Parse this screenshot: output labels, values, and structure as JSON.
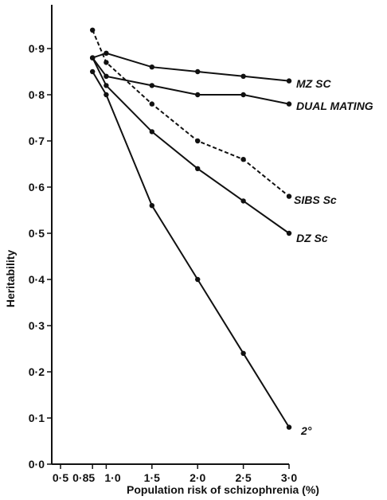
{
  "chart_data": {
    "type": "line",
    "xlabel": "Population risk of schizophrenia (%)",
    "ylabel": "Heritability",
    "xlim": [
      0.5,
      3.0
    ],
    "ylim": [
      0.0,
      1.0
    ],
    "x_ticks": [
      {
        "value": 0.5,
        "label": "0·5"
      },
      {
        "value": 0.85,
        "label": "0·85"
      },
      {
        "value": 1.0,
        "label": "1·0"
      },
      {
        "value": 1.5,
        "label": "1·5"
      },
      {
        "value": 2.0,
        "label": "2·0"
      },
      {
        "value": 2.5,
        "label": "2·5"
      },
      {
        "value": 3.0,
        "label": "3·0"
      }
    ],
    "y_ticks": [
      {
        "value": 0.0,
        "label": "0·0"
      },
      {
        "value": 0.1,
        "label": "0·1"
      },
      {
        "value": 0.2,
        "label": "0·2"
      },
      {
        "value": 0.3,
        "label": "0·3"
      },
      {
        "value": 0.4,
        "label": "0·4"
      },
      {
        "value": 0.5,
        "label": "0·5"
      },
      {
        "value": 0.6,
        "label": "0·6"
      },
      {
        "value": 0.7,
        "label": "0·7"
      },
      {
        "value": 0.8,
        "label": "0·8"
      },
      {
        "value": 0.9,
        "label": "0·9"
      }
    ],
    "grid": false,
    "legend": "none",
    "series": [
      {
        "name": "MZ SC",
        "dash": "solid",
        "x": [
          0.85,
          1.0,
          1.5,
          2.0,
          2.5,
          3.0
        ],
        "y": [
          0.88,
          0.89,
          0.86,
          0.85,
          0.84,
          0.83
        ]
      },
      {
        "name": "DUAL MATING",
        "dash": "solid",
        "x": [
          0.85,
          1.0,
          1.5,
          2.0,
          2.5,
          3.0
        ],
        "y": [
          0.88,
          0.84,
          0.82,
          0.8,
          0.8,
          0.78
        ]
      },
      {
        "name": "SIBS Sc",
        "dash": "dashed",
        "x": [
          0.85,
          1.0,
          1.5,
          2.0,
          2.5,
          3.0
        ],
        "y": [
          0.94,
          0.87,
          0.78,
          0.7,
          0.66,
          0.58
        ]
      },
      {
        "name": "DZ Sc",
        "dash": "solid",
        "x": [
          0.85,
          1.0,
          1.5,
          2.0,
          2.5,
          3.0
        ],
        "y": [
          0.88,
          0.82,
          0.72,
          0.64,
          0.57,
          0.5
        ]
      },
      {
        "name": "2°",
        "dash": "solid",
        "x": [
          0.85,
          1.0,
          1.5,
          2.0,
          2.5,
          3.0
        ],
        "y": [
          0.85,
          0.8,
          0.56,
          0.4,
          0.24,
          0.08
        ]
      }
    ]
  }
}
